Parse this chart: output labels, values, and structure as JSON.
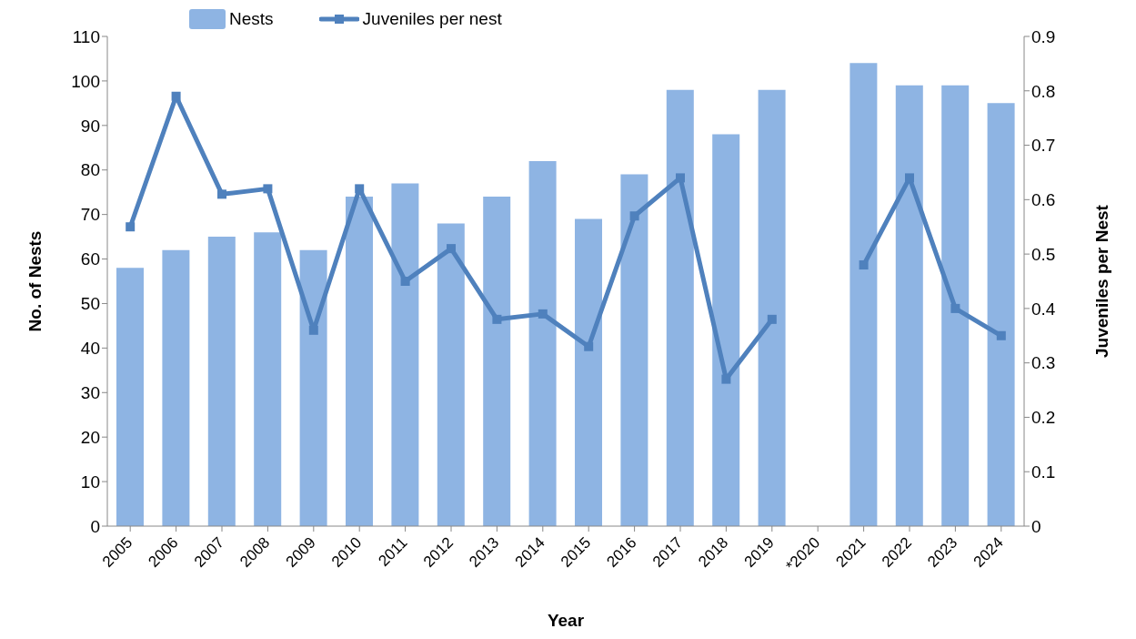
{
  "chart_data": {
    "type": "bar",
    "xlabel": "Year",
    "ylabel": "No. of Nests",
    "y2label": "Juveniles per Nest",
    "categories": [
      "2005",
      "2006",
      "2007",
      "2008",
      "2009",
      "2010",
      "2011",
      "2012",
      "2013",
      "2014",
      "2015",
      "2016",
      "2017",
      "2018",
      "2019",
      "*2020",
      "2021",
      "2022",
      "2023",
      "2024"
    ],
    "series": [
      {
        "name": "Nests",
        "color": "#8eb4e3",
        "values": [
          58,
          62,
          65,
          66,
          62,
          74,
          77,
          68,
          74,
          82,
          69,
          79,
          98,
          88,
          98,
          null,
          104,
          99,
          99,
          95
        ]
      },
      {
        "name": "Juveniles per nest",
        "type": "line",
        "axis": "y2",
        "color": "#4f81bd",
        "values": [
          0.55,
          0.79,
          0.61,
          0.62,
          0.36,
          0.62,
          0.45,
          0.51,
          0.38,
          0.39,
          0.33,
          0.57,
          0.64,
          0.27,
          0.38,
          null,
          0.48,
          0.64,
          0.4,
          0.35
        ]
      }
    ],
    "ylim": [
      0,
      110
    ],
    "yticks": [
      0,
      10,
      20,
      30,
      40,
      50,
      60,
      70,
      80,
      90,
      100,
      110
    ],
    "y2lim": [
      0,
      0.9
    ],
    "y2ticks": [
      0,
      0.1,
      0.2,
      0.3,
      0.4,
      0.5,
      0.6,
      0.7,
      0.8,
      0.9
    ],
    "grid": false,
    "legend": "top",
    "marker": "square",
    "line_style": "solid"
  }
}
